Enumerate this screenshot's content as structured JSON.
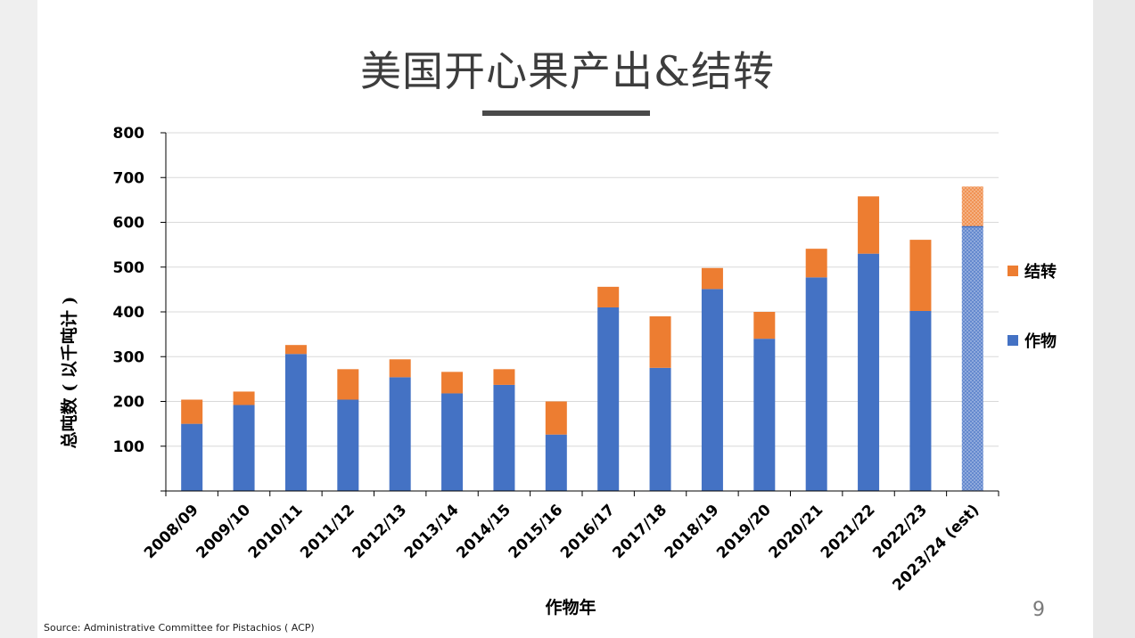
{
  "slide": {
    "title": "美国开心果产出&结转",
    "source": "Source:  Administrative Committee for Pistachios ( ACP)",
    "page_number": "9"
  },
  "colors": {
    "crop": "#4472c4",
    "carryover": "#ed7d31",
    "estimate_crop": "#8fa9dc",
    "estimate_carryover": "#f4b183"
  },
  "chart_data": {
    "type": "bar",
    "stacked": true,
    "categories": [
      "2008/09",
      "2009/10",
      "2010/11",
      "2011/12",
      "2012/13",
      "2013/14",
      "2014/15",
      "2015/16",
      "2016/17",
      "2017/18",
      "2018/19",
      "2019/20",
      "2020/21",
      "2021/22",
      "2022/23",
      "2023/24 (est)"
    ],
    "series": [
      {
        "name": "作物",
        "color": "#4472c4",
        "values": [
          150,
          192,
          306,
          204,
          254,
          218,
          237,
          126,
          410,
          275,
          451,
          340,
          477,
          530,
          402,
          590
        ]
      },
      {
        "name": "结转",
        "color": "#ed7d31",
        "values": [
          54,
          30,
          20,
          68,
          40,
          48,
          35,
          74,
          46,
          115,
          47,
          60,
          64,
          128,
          159,
          90
        ]
      }
    ],
    "estimate_category": "2023/24 (est)",
    "xlabel": "作物年",
    "ylabel": "总吨数 ( 以千吨计 )",
    "ylim": [
      0,
      800
    ],
    "yticks": [
      0,
      100,
      200,
      300,
      400,
      500,
      600,
      700,
      800
    ],
    "ytick_labels": [
      "",
      "100",
      "200",
      "300",
      "400",
      "500",
      "600",
      "700",
      "800"
    ],
    "grid": true,
    "legend_position": "right"
  }
}
